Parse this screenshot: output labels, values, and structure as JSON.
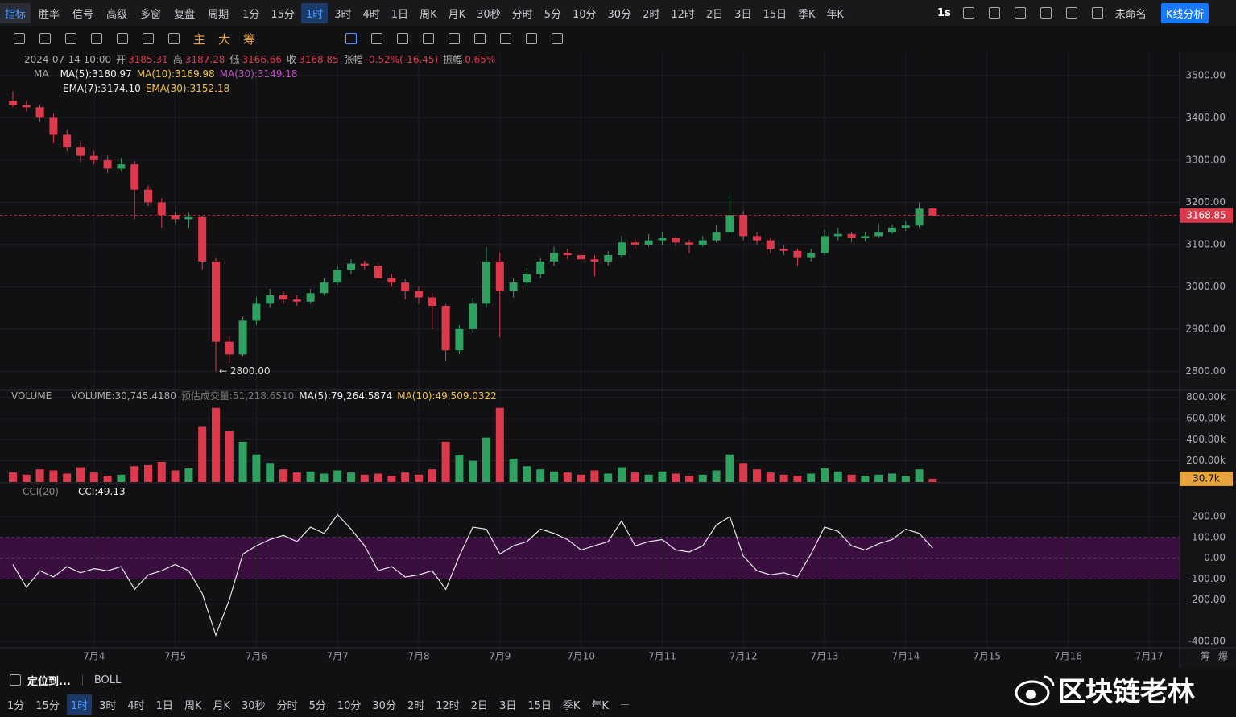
{
  "toolbar": {
    "top": [
      "指标",
      "胜率",
      "信号",
      "高级",
      "多窗",
      "复盘",
      "周期",
      "1分",
      "15分",
      "1时",
      "3时",
      "4时",
      "1日",
      "周K",
      "月K",
      "30秒",
      "分时",
      "5分",
      "10分",
      "30分",
      "2时",
      "12时",
      "2日",
      "3日",
      "15日",
      "季K",
      "年K"
    ],
    "active": "1时",
    "right": [
      "1s",
      "未命名",
      "K线分析"
    ],
    "draw": [
      "主",
      "大",
      "筹"
    ]
  },
  "legend": {
    "datetime": "2024-07-14 10:00",
    "open_label": "开",
    "high_label": "高",
    "low_label": "低",
    "close_label": "收",
    "change_label": "张幅",
    "change": "-0.52%(-16.45)",
    "amplitude_label": "振幅",
    "amplitude": "0.65%",
    "ma": [
      "MA",
      "MA(5):3180.97",
      "MA(10):3169.98",
      "MA(30):3149.18"
    ],
    "ema": [
      "EMA(7):3174.10",
      "EMA(30):3152.18"
    ],
    "volume": [
      "VOLUME",
      "VOLUME:30,745.4180",
      "预估成交量:51,218.6510",
      "MA(5):79,264.5874",
      "MA(10):49,509.0322"
    ],
    "cci": [
      "CCI(20)",
      "CCI:49.13"
    ]
  },
  "bottom": {
    "locate": "定位到...",
    "indicator": "BOLL",
    "periods": [
      "1分",
      "15分",
      "1时",
      "3时",
      "4时",
      "1日",
      "周K",
      "月K",
      "30秒",
      "分时",
      "5分",
      "10分",
      "30分",
      "2时",
      "12时",
      "2日",
      "3日",
      "15日",
      "季K",
      "年K"
    ]
  },
  "watermark": "区块链老林",
  "chart_data": {
    "type": "candlestick",
    "up_color": "#2ea05f",
    "down_color": "#dc3a4c",
    "categories": [
      null,
      null,
      null,
      null,
      null,
      null,
      "7月4",
      null,
      null,
      null,
      null,
      null,
      "7月5",
      null,
      null,
      null,
      null,
      null,
      "7月6",
      null,
      null,
      null,
      null,
      null,
      "7月7",
      null,
      null,
      null,
      null,
      null,
      "7月8",
      null,
      null,
      null,
      null,
      null,
      "7月9",
      null,
      null,
      null,
      null,
      null,
      "7月10",
      null,
      null,
      null,
      null,
      null,
      "7月11",
      null,
      null,
      null,
      null,
      null,
      "7月12",
      null,
      null,
      null,
      null,
      null,
      "7月13",
      null,
      null,
      null,
      null,
      null,
      "7月14",
      null,
      null,
      null,
      null,
      null,
      "7月15",
      null,
      null,
      null,
      null,
      null,
      "7月16",
      null,
      null,
      null,
      null,
      null,
      "7月17"
    ],
    "open": [
      3440,
      3430,
      3425,
      3400,
      3360,
      3330,
      3310,
      3300,
      3280,
      3290,
      3230,
      3200,
      3170,
      3160,
      3165,
      3060,
      2870,
      2840,
      2920,
      2960,
      2980,
      2970,
      2965,
      2985,
      3010,
      3040,
      3055,
      3050,
      3020,
      3010,
      2990,
      2975,
      2955,
      2850,
      2900,
      2960,
      3060,
      2990,
      3010,
      3030,
      3060,
      3080,
      3075,
      3065,
      3060,
      3075,
      3105,
      3100,
      3110,
      3115,
      3105,
      3100,
      3110,
      3130,
      3170,
      3120,
      3110,
      3090,
      3085,
      3070,
      3080,
      3120,
      3125,
      3115,
      3120,
      3130,
      3140,
      3145,
      3185.31,
      null,
      null,
      null,
      null,
      null,
      null,
      null,
      null,
      null,
      null,
      null,
      null,
      null,
      null,
      null,
      null
    ],
    "high": [
      3463,
      3440,
      3432,
      3410,
      3372,
      3345,
      3322,
      3312,
      3305,
      3298,
      3240,
      3210,
      3178,
      3175,
      3168,
      3070,
      2885,
      2930,
      2975,
      2995,
      2990,
      2980,
      2995,
      3020,
      3050,
      3065,
      3062,
      3055,
      3030,
      3018,
      3000,
      2985,
      2960,
      2910,
      2975,
      3095,
      3080,
      3020,
      3045,
      3070,
      3095,
      3090,
      3085,
      3075,
      3085,
      3120,
      3115,
      3125,
      3130,
      3120,
      3112,
      3120,
      3145,
      3215,
      3180,
      3130,
      3115,
      3100,
      3090,
      3090,
      3135,
      3140,
      3130,
      3130,
      3150,
      3148,
      3155,
      3200,
      3187.28,
      null,
      null,
      null,
      null,
      null,
      null,
      null,
      null,
      null,
      null,
      null,
      null,
      null,
      null,
      null,
      null
    ],
    "low": [
      3425,
      3415,
      3390,
      3340,
      3320,
      3295,
      3290,
      3270,
      3275,
      3160,
      3190,
      3140,
      3150,
      3140,
      3040,
      2800,
      2820,
      2835,
      2910,
      2950,
      2960,
      2955,
      2960,
      2980,
      3005,
      3030,
      3040,
      3010,
      3000,
      2970,
      2960,
      2900,
      2825,
      2840,
      2890,
      2950,
      2880,
      2975,
      3000,
      3020,
      3050,
      3065,
      3055,
      3025,
      3050,
      3070,
      3090,
      3095,
      3100,
      3095,
      3080,
      3095,
      3105,
      3125,
      3110,
      3100,
      3080,
      3075,
      3050,
      3060,
      3075,
      3110,
      3105,
      3108,
      3115,
      3125,
      3132,
      3140,
      3166.66,
      null,
      null,
      null,
      null,
      null,
      null,
      null,
      null,
      null,
      null,
      null,
      null,
      null,
      null,
      null,
      null
    ],
    "close": [
      3430,
      3425,
      3400,
      3360,
      3330,
      3310,
      3300,
      3280,
      3290,
      3230,
      3200,
      3170,
      3160,
      3165,
      3060,
      2870,
      2840,
      2920,
      2960,
      2980,
      2970,
      2965,
      2985,
      3010,
      3040,
      3055,
      3050,
      3020,
      3010,
      2990,
      2975,
      2955,
      2850,
      2900,
      2960,
      3060,
      2990,
      3010,
      3030,
      3060,
      3080,
      3075,
      3065,
      3060,
      3075,
      3105,
      3100,
      3110,
      3115,
      3105,
      3100,
      3110,
      3130,
      3170,
      3120,
      3110,
      3090,
      3085,
      3070,
      3080,
      3120,
      3125,
      3115,
      3120,
      3130,
      3140,
      3145,
      3185,
      3168.85,
      null,
      null,
      null,
      null,
      null,
      null,
      null,
      null,
      null,
      null,
      null,
      null,
      null,
      null,
      null,
      null
    ],
    "volume": [
      90000,
      70000,
      120000,
      110000,
      80000,
      140000,
      90000,
      60000,
      70000,
      150000,
      160000,
      190000,
      110000,
      130000,
      520000,
      700000,
      480000,
      380000,
      260000,
      180000,
      120000,
      90000,
      100000,
      80000,
      110000,
      90000,
      70000,
      80000,
      60000,
      90000,
      70000,
      120000,
      380000,
      250000,
      200000,
      420000,
      700000,
      220000,
      150000,
      120000,
      100000,
      90000,
      70000,
      110000,
      80000,
      140000,
      90000,
      70000,
      100000,
      80000,
      60000,
      70000,
      110000,
      260000,
      180000,
      120000,
      90000,
      70000,
      60000,
      80000,
      130000,
      100000,
      70000,
      60000,
      70000,
      80000,
      60000,
      120000,
      30745.418,
      null,
      null,
      null,
      null,
      null,
      null,
      null,
      null,
      null,
      null,
      null,
      null,
      null,
      null,
      null,
      null
    ],
    "cci": [
      -30,
      -140,
      -60,
      -90,
      -40,
      -70,
      -50,
      -60,
      -40,
      -150,
      -80,
      -60,
      -30,
      -60,
      -170,
      -370,
      -200,
      20,
      60,
      90,
      110,
      80,
      150,
      120,
      210,
      140,
      60,
      -60,
      -40,
      -90,
      -80,
      -60,
      -150,
      10,
      150,
      140,
      20,
      60,
      80,
      140,
      120,
      90,
      40,
      60,
      80,
      180,
      60,
      80,
      90,
      40,
      30,
      60,
      160,
      200,
      10,
      -60,
      -80,
      -70,
      -90,
      20,
      150,
      130,
      60,
      40,
      70,
      90,
      140,
      120,
      49.13,
      null,
      null,
      null,
      null,
      null,
      null,
      null,
      null,
      null,
      null,
      null,
      null,
      null,
      null,
      null,
      null
    ],
    "cci_color": "#e6e6e6",
    "cci_band": [
      -100,
      100
    ],
    "cci_band_color": "#3a0f40",
    "ylim": [
      2755,
      3557
    ],
    "yticks": [
      {
        "value": 2800,
        "label": "2800.00"
      },
      {
        "value": 2900,
        "label": "2900.00"
      },
      {
        "value": 3000,
        "label": "3000.00"
      },
      {
        "value": 3100,
        "label": "3100.00"
      },
      {
        "value": 3200,
        "label": "3200.00"
      },
      {
        "value": 3300,
        "label": "3300.00"
      },
      {
        "value": 3400,
        "label": "3400.00"
      },
      {
        "value": 3500,
        "label": "3500.00"
      }
    ],
    "volume_ylim": [
      0,
      865000
    ],
    "volume_yticks": [
      {
        "value": 200000,
        "label": "200.00k"
      },
      {
        "value": 400000,
        "label": "400.00k"
      },
      {
        "value": 600000,
        "label": "600.00k"
      },
      {
        "value": 800000,
        "label": "800.00k"
      }
    ],
    "cci_ylim": [
      -431,
      363
    ],
    "cci_yticks": [
      {
        "value": -400,
        "label": "-400.00"
      },
      {
        "value": -200,
        "label": "-200.00"
      },
      {
        "value": -100,
        "label": "-100.00"
      },
      {
        "value": 0,
        "label": "0.00"
      },
      {
        "value": 100,
        "label": "100.00"
      },
      {
        "value": 200,
        "label": "200.00"
      }
    ],
    "low_annotation": "← 2800.00",
    "volume_label": "30.7k",
    "axis_corner": [
      "筹",
      "爆"
    ],
    "grid": true
  }
}
